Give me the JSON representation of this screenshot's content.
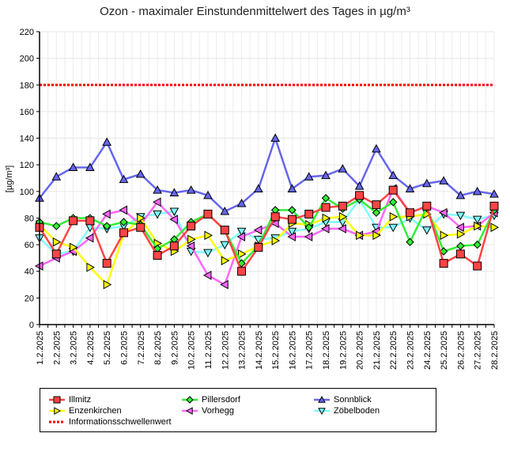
{
  "chart_data": {
    "type": "line",
    "title": "Ozon -  maximaler Einstundenmittelwert des Tages in µg/m³",
    "xlabel": "",
    "ylabel": "[µg/m³]",
    "ylim": [
      0,
      220
    ],
    "yticks": [
      0,
      20,
      40,
      60,
      80,
      100,
      120,
      140,
      160,
      180,
      200,
      220
    ],
    "grid": true,
    "legend_position": "bottom",
    "categories": [
      "1.2.2025",
      "2.2.2025",
      "3.2.2025",
      "4.2.2025",
      "5.2.2025",
      "6.2.2025",
      "7.2.2025",
      "8.2.2025",
      "9.2.2025",
      "10.2.2025",
      "11.2.2025",
      "12.2.2025",
      "13.2.2025",
      "14.2.2025",
      "15.2.2025",
      "16.2.2025",
      "17.2.2025",
      "18.2.2025",
      "19.2.2025",
      "20.2.2025",
      "21.2.2025",
      "22.2.2025",
      "23.2.2025",
      "24.2.2025",
      "25.2.2025",
      "26.2.2025",
      "27.2.2025",
      "28.2.2025"
    ],
    "series": [
      {
        "name": "Zöbelboden",
        "color": "#80ffff",
        "marker": "triangle-down",
        "values": [
          65,
          53,
          55,
          73,
          72,
          74,
          81,
          83,
          85,
          55,
          54,
          60,
          70,
          64,
          65,
          70,
          72,
          77,
          77,
          94,
          73,
          73,
          80,
          71,
          83,
          82,
          79,
          82
        ]
      },
      {
        "name": "Vorhegg",
        "color": "#ff66ff",
        "marker": "triangle-left",
        "values": [
          44,
          50,
          55,
          65,
          83,
          86,
          75,
          92,
          79,
          59,
          37,
          30,
          66,
          71,
          76,
          66,
          66,
          72,
          72,
          67,
          70,
          102,
          84,
          89,
          84,
          73,
          74,
          84
        ]
      },
      {
        "name": "Enzenkirchen",
        "color": "#ffff00",
        "marker": "triangle-right",
        "values": [
          75,
          62,
          58,
          43,
          30,
          68,
          80,
          61,
          55,
          64,
          67,
          48,
          53,
          59,
          63,
          76,
          75,
          80,
          81,
          67,
          67,
          81,
          81,
          83,
          67,
          68,
          74,
          73
        ]
      },
      {
        "name": "Sonnblick",
        "color": "#6666ee",
        "marker": "triangle-up",
        "values": [
          95,
          111,
          118,
          118,
          137,
          109,
          113,
          101,
          99,
          101,
          97,
          85,
          91,
          102,
          140,
          102,
          111,
          112,
          117,
          104,
          132,
          112,
          102,
          106,
          108,
          97,
          100,
          98
        ]
      },
      {
        "name": "Pillersdorf",
        "color": "#33ee33",
        "marker": "diamond",
        "values": [
          77,
          74,
          80,
          80,
          74,
          77,
          75,
          57,
          64,
          77,
          83,
          71,
          46,
          59,
          86,
          86,
          73,
          95,
          87,
          94,
          84,
          92,
          62,
          88,
          55,
          59,
          60,
          86
        ]
      },
      {
        "name": "Illmitz",
        "color": "#ff4444",
        "marker": "square",
        "values": [
          73,
          53,
          78,
          78,
          46,
          69,
          73,
          52,
          59,
          74,
          83,
          71,
          40,
          58,
          81,
          79,
          83,
          88,
          89,
          97,
          90,
          101,
          84,
          89,
          46,
          53,
          44,
          89
        ]
      }
    ],
    "threshold": {
      "name": "Informationsschwellenwert",
      "value": 180,
      "color": "#ff0000",
      "style": "dotted"
    },
    "legend": [
      {
        "name": "Illmitz",
        "color": "#ff4444",
        "marker": "square"
      },
      {
        "name": "Pillersdorf",
        "color": "#33ee33",
        "marker": "diamond"
      },
      {
        "name": "Sonnblick",
        "color": "#6666ee",
        "marker": "triangle-up"
      },
      {
        "name": "Enzenkirchen",
        "color": "#ffff00",
        "marker": "triangle-right"
      },
      {
        "name": "Vorhegg",
        "color": "#ff66ff",
        "marker": "triangle-left"
      },
      {
        "name": "Zöbelboden",
        "color": "#80ffff",
        "marker": "triangle-down"
      },
      {
        "name": "Informationsschwellenwert",
        "color": "#ff0000",
        "marker": "dotted-line"
      }
    ]
  }
}
